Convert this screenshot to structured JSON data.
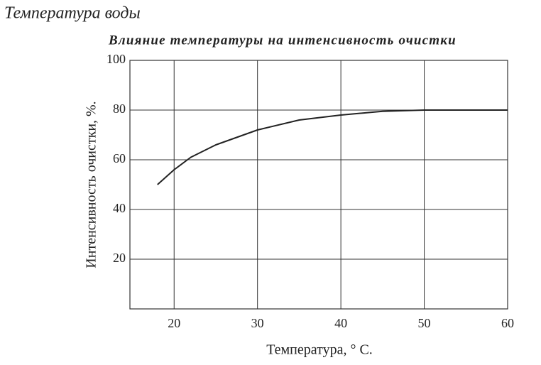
{
  "chart_data": {
    "type": "line",
    "title": "Температура воды",
    "subtitle": "Влияние температуры на интенсивность очистки",
    "x_label": "Температура, ° С.",
    "y_label": "Интенсивность очистки, %.",
    "x": [
      18,
      20,
      22,
      25,
      30,
      35,
      40,
      45,
      50,
      55,
      60
    ],
    "series": [
      {
        "name": "Интенсивность очистки",
        "color": "#222222",
        "values": [
          50,
          56,
          61,
          66,
          72,
          76,
          78,
          79.5,
          80,
          80,
          80
        ]
      }
    ],
    "xlim": [
      14.7,
      60
    ],
    "xticks": [
      20,
      30,
      40,
      50,
      60
    ],
    "ylim": [
      0,
      100
    ],
    "yticks": [
      20,
      40,
      60,
      80,
      100
    ],
    "grid": true
  }
}
